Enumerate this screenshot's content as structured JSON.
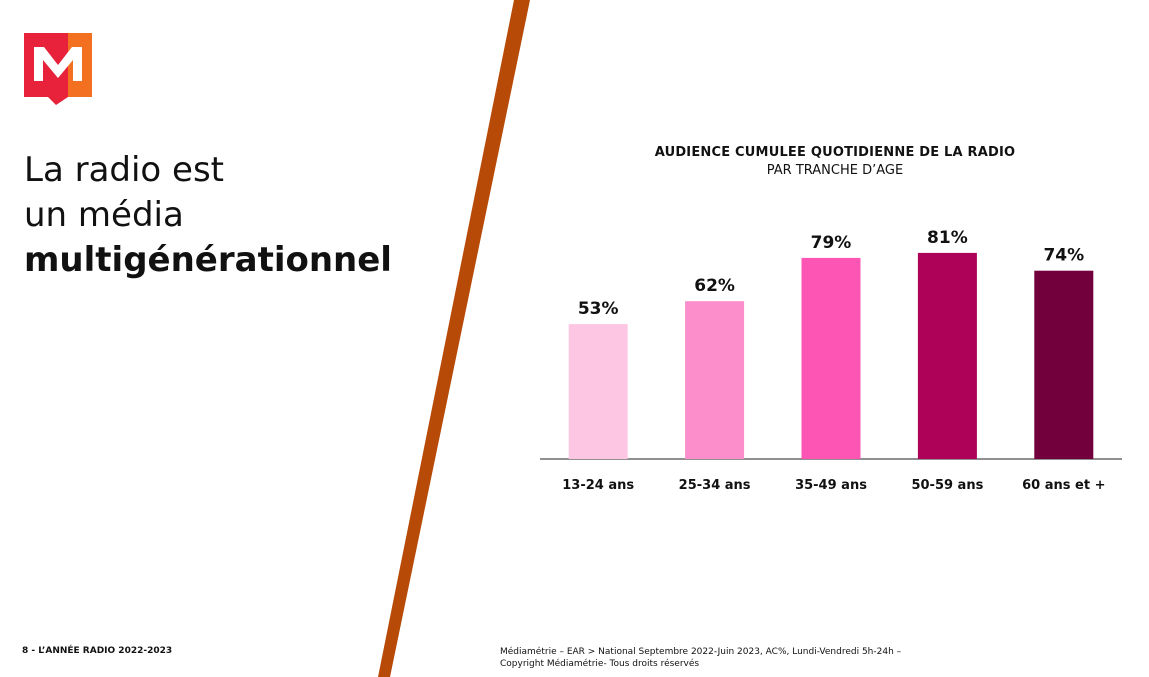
{
  "headline": {
    "line1": "La radio est",
    "line2": "un média",
    "line3": "multigénérationnel"
  },
  "footer": {
    "page_label": "8 - L’ANNÉE RADIO 2022-2023",
    "source_line1": "Médiamétrie – EAR > National Septembre 2022-Juin 2023, AC%, Lundi-Vendredi 5h-24h –",
    "source_line2": "Copyright Médiamétrie- Tous droits réservés"
  },
  "colors": {
    "stripe": "#b84a07",
    "logo_red": "#e8223a",
    "logo_orange": "#f37021"
  },
  "chart_data": {
    "type": "bar",
    "title": "AUDIENCE CUMULEE QUOTIDIENNE DE LA RADIO",
    "subtitle": "PAR TRANCHE D’AGE",
    "categories": [
      "13-24 ans",
      "25-34 ans",
      "35-49 ans",
      "50-59 ans",
      "60 ans et +"
    ],
    "values": [
      53,
      62,
      79,
      81,
      74
    ],
    "data_labels": [
      "53%",
      "62%",
      "79%",
      "81%",
      "74%"
    ],
    "bar_colors": [
      "#fdc6e3",
      "#fb8ecb",
      "#fd55b4",
      "#ae0258",
      "#72003c"
    ],
    "ylim": [
      0,
      100
    ],
    "grid": false,
    "legend": "none"
  }
}
